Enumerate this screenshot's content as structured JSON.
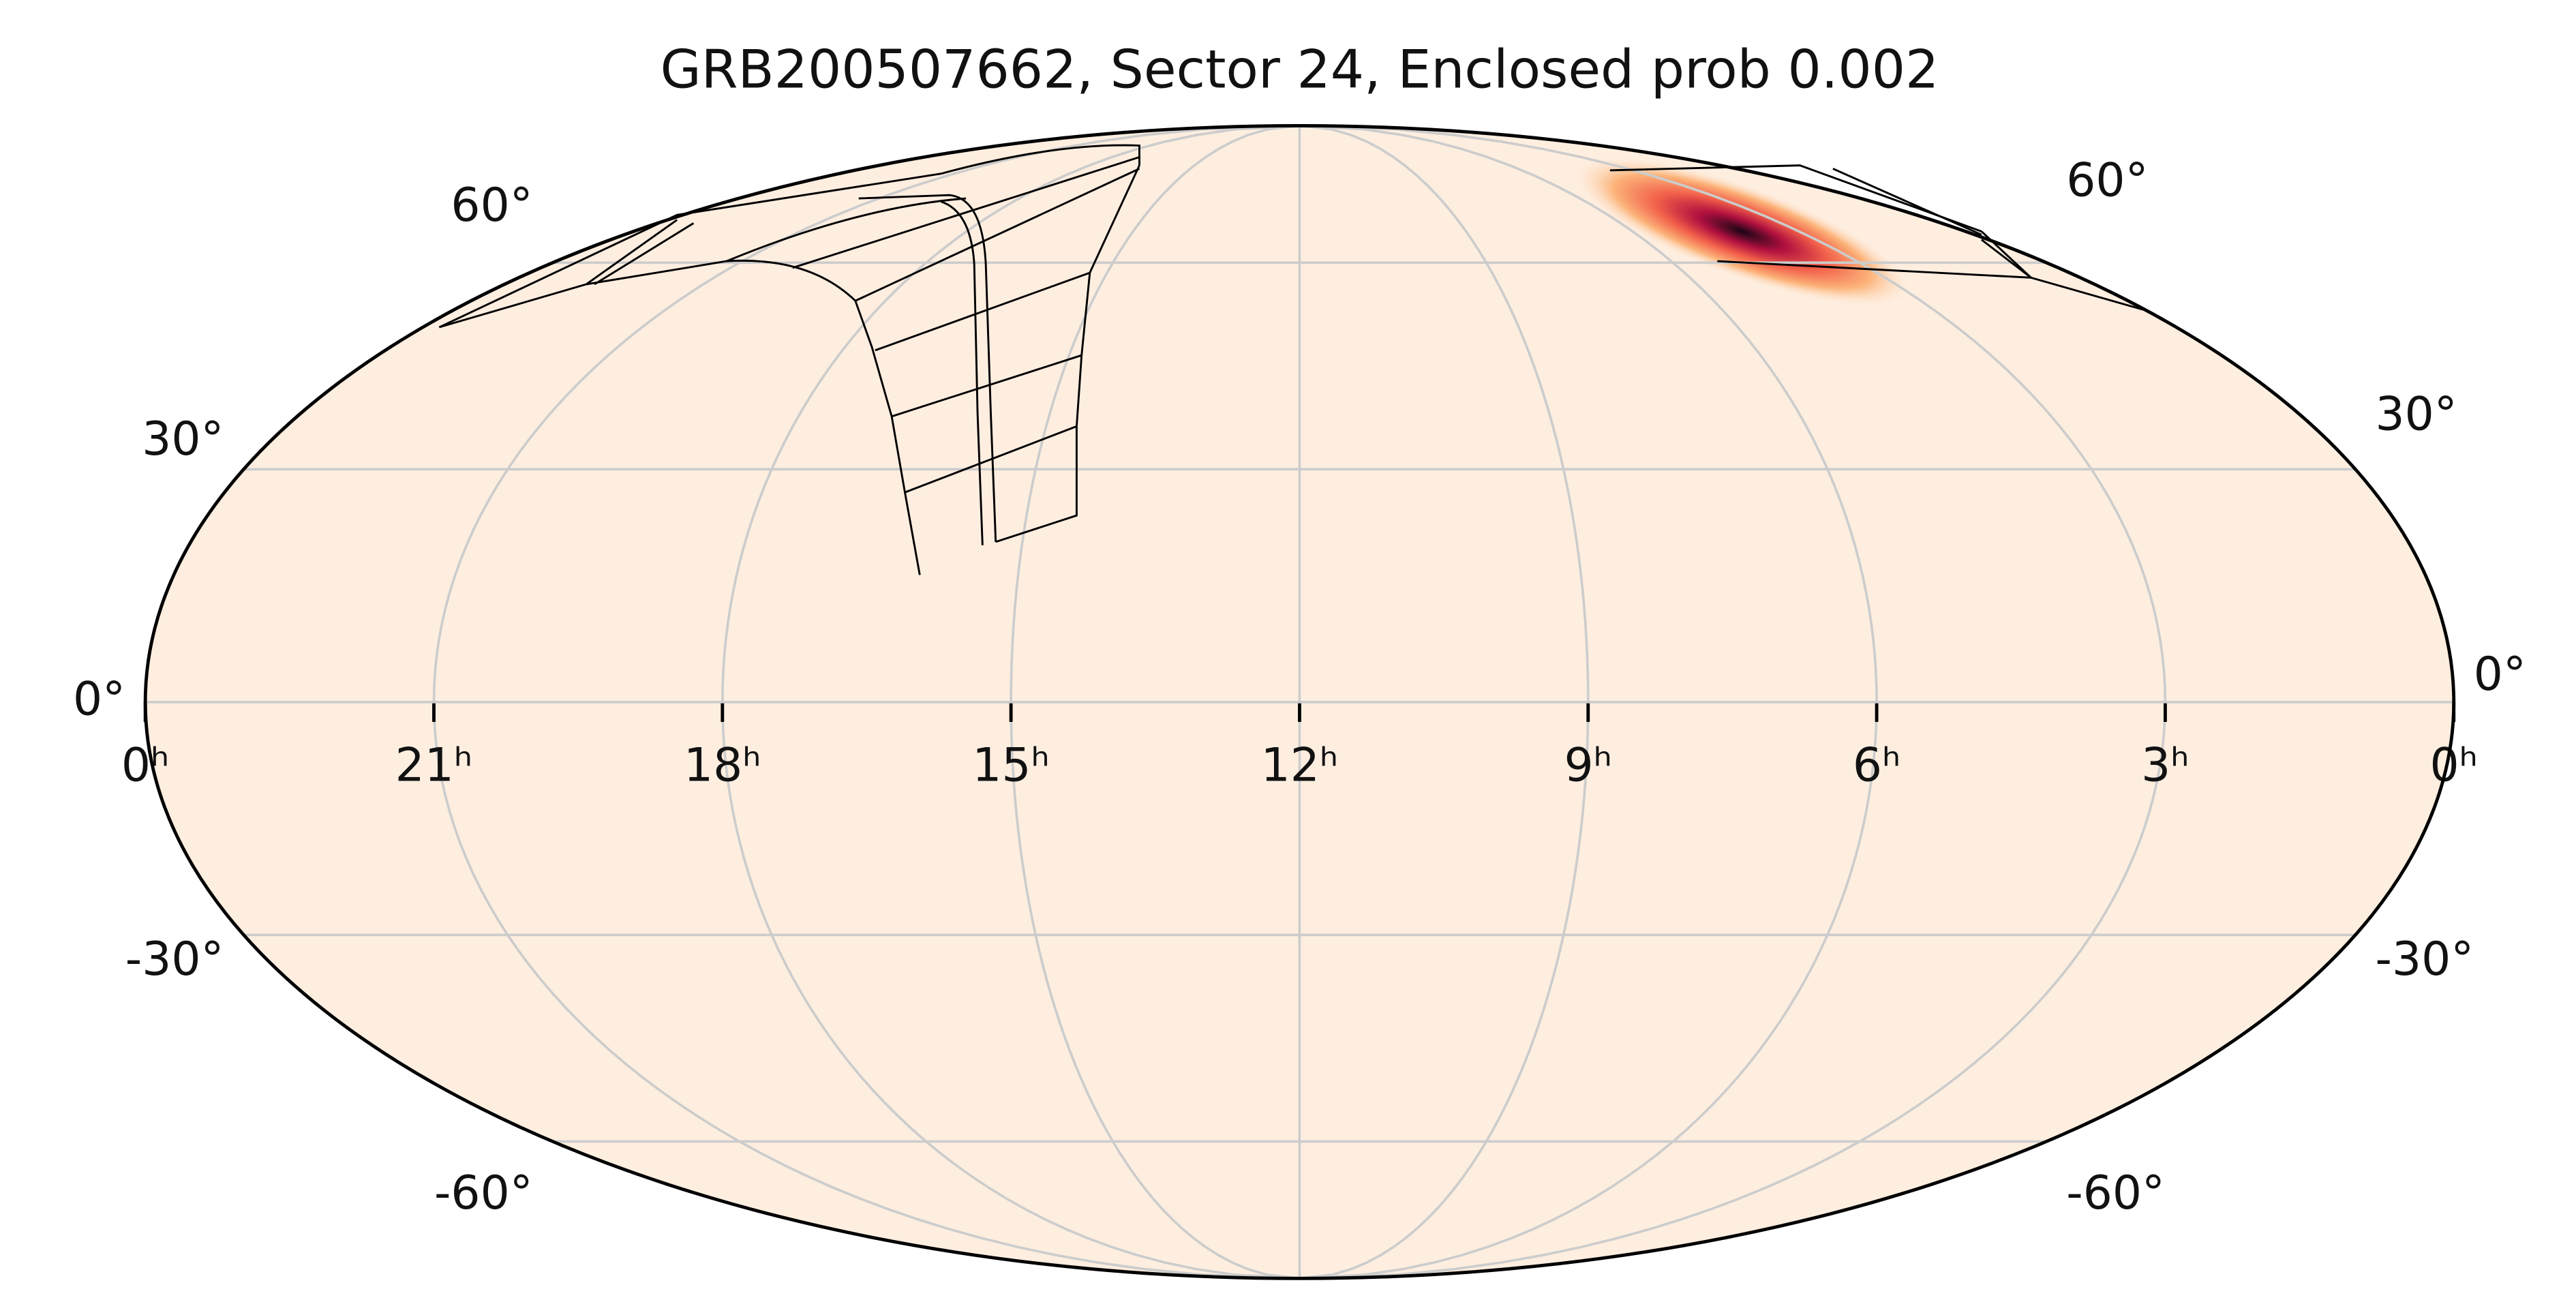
{
  "chart_data": {
    "type": "mollweide",
    "title": "GRB200507662, Sector 24, Enclosed prob 0.002",
    "xlim": [
      24,
      0
    ],
    "xticks": [
      {
        "value": 24,
        "label": "0ʰ"
      },
      {
        "value": 21,
        "label": "21ʰ"
      },
      {
        "value": 18,
        "label": "18ʰ"
      },
      {
        "value": 15,
        "label": "15ʰ"
      },
      {
        "value": 12,
        "label": "12ʰ"
      },
      {
        "value": 9,
        "label": "9ʰ"
      },
      {
        "value": 6,
        "label": "6ʰ"
      },
      {
        "value": 3,
        "label": "3ʰ"
      },
      {
        "value": 0,
        "label": "0ʰ"
      }
    ],
    "ylim": [
      -90,
      90
    ],
    "yticks": [
      {
        "value": -60,
        "label": "-60°"
      },
      {
        "value": -30,
        "label": "-30°"
      },
      {
        "value": 0,
        "label": "0°"
      },
      {
        "value": 30,
        "label": "30°"
      },
      {
        "value": 60,
        "label": "60°"
      }
    ],
    "grid": true,
    "background": "#feeee0"
  }
}
